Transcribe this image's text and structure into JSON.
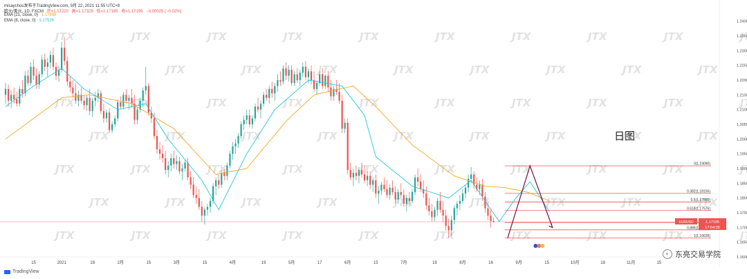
{
  "header": {
    "line1_prefix": "misaychou发布于TradingView.com, 9月 22, 2021 11:55 UTC+8",
    "symbol": "欧元/美元, 1D, FXCM",
    "open": "开=1.17220",
    "high": "高=1.17329",
    "low": "低=1.17165",
    "close": "收=1.17195",
    "change": "−0.00025 (−0.02%)",
    "ema21": "EMA (21, close, 0)",
    "ema21_val": "1.17898",
    "ema8": "EMA (8, close, 0)",
    "ema8_val": "1.17526"
  },
  "day_label": "日图",
  "watermark_text": "JTX",
  "footer": {
    "tv_label": "TradingView",
    "source_label": "东亮交易学院"
  },
  "colors": {
    "up": "#26a69a",
    "down": "#ef5350",
    "ema21": "#f5a623",
    "ema8": "#26c6da",
    "fib": "#ef5350",
    "pattern": "#7b1e4a"
  },
  "chart_data": {
    "type": "candlestick",
    "title": "",
    "y_ticks": [
      "1.24000",
      "1.23500",
      "1.23000",
      "1.22500",
      "1.22000",
      "1.21500",
      "1.21000",
      "1.20500",
      "1.20000",
      "1.19500",
      "1.19000",
      "1.18500",
      "1.18000",
      "1.17500",
      "1.17000",
      "1.16500",
      "1.16000"
    ],
    "ylim": [
      1.16,
      1.2425
    ],
    "x_ticks": [
      "15",
      "2021",
      "18",
      "2月",
      "15",
      "3月",
      "15",
      "4月",
      "19",
      "5月",
      "17",
      "6月",
      "15",
      "7月",
      "19",
      "8月",
      "16",
      "9月",
      "15",
      "10月",
      "18",
      "11月",
      "15"
    ],
    "x_tick_index": [
      10,
      20,
      31,
      41,
      51,
      61,
      71,
      81,
      92,
      102,
      112,
      122,
      132,
      142,
      153,
      163,
      173,
      183,
      193,
      203,
      213,
      223,
      233
    ],
    "candles": [
      [
        1.215,
        1.219,
        1.212,
        1.217
      ],
      [
        1.217,
        1.2185,
        1.211,
        1.213
      ],
      [
        1.213,
        1.2165,
        1.2105,
        1.215
      ],
      [
        1.215,
        1.2175,
        1.212,
        1.2135
      ],
      [
        1.2135,
        1.216,
        1.211,
        1.212
      ],
      [
        1.212,
        1.218,
        1.211,
        1.217
      ],
      [
        1.217,
        1.22,
        1.214,
        1.2155
      ],
      [
        1.2155,
        1.223,
        1.2145,
        1.2215
      ],
      [
        1.2215,
        1.2235,
        1.218,
        1.219
      ],
      [
        1.219,
        1.226,
        1.218,
        1.2245
      ],
      [
        1.2245,
        1.227,
        1.22,
        1.2215
      ],
      [
        1.2215,
        1.224,
        1.217,
        1.2185
      ],
      [
        1.2185,
        1.223,
        1.217,
        1.222
      ],
      [
        1.222,
        1.2285,
        1.221,
        1.227
      ],
      [
        1.227,
        1.229,
        1.223,
        1.2245
      ],
      [
        1.2245,
        1.2275,
        1.221,
        1.226
      ],
      [
        1.226,
        1.23,
        1.224,
        1.2285
      ],
      [
        1.2285,
        1.231,
        1.2235,
        1.2245
      ],
      [
        1.2245,
        1.226,
        1.22,
        1.2215
      ],
      [
        1.2215,
        1.225,
        1.2195,
        1.2235
      ],
      [
        1.2235,
        1.233,
        1.2225,
        1.231
      ],
      [
        1.231,
        1.2345,
        1.225,
        1.2265
      ],
      [
        1.2265,
        1.228,
        1.218,
        1.2195
      ],
      [
        1.2195,
        1.2215,
        1.216,
        1.2175
      ],
      [
        1.2175,
        1.22,
        1.214,
        1.2155
      ],
      [
        1.2155,
        1.219,
        1.212,
        1.213
      ],
      [
        1.213,
        1.2165,
        1.211,
        1.215
      ],
      [
        1.215,
        1.2175,
        1.212,
        1.213
      ],
      [
        1.213,
        1.215,
        1.21,
        1.2115
      ],
      [
        1.2115,
        1.215,
        1.2095,
        1.214
      ],
      [
        1.214,
        1.217,
        1.208,
        1.2095
      ],
      [
        1.2095,
        1.214,
        1.2075,
        1.213
      ],
      [
        1.213,
        1.216,
        1.211,
        1.214
      ],
      [
        1.214,
        1.217,
        1.2125,
        1.2155
      ],
      [
        1.2155,
        1.2165,
        1.2085,
        1.2095
      ],
      [
        1.2095,
        1.212,
        1.2055,
        1.207
      ],
      [
        1.207,
        1.21,
        1.2055,
        1.209
      ],
      [
        1.209,
        1.2105,
        1.202,
        1.203
      ],
      [
        1.203,
        1.206,
        1.202,
        1.205
      ],
      [
        1.205,
        1.208,
        1.204,
        1.207
      ],
      [
        1.207,
        1.2135,
        1.206,
        1.2125
      ],
      [
        1.2125,
        1.2145,
        1.21,
        1.211
      ],
      [
        1.211,
        1.216,
        1.21,
        1.215
      ],
      [
        1.215,
        1.217,
        1.212,
        1.213
      ],
      [
        1.213,
        1.215,
        1.21,
        1.214
      ],
      [
        1.214,
        1.217,
        1.211,
        1.212
      ],
      [
        1.212,
        1.215,
        1.205,
        1.2065
      ],
      [
        1.2065,
        1.211,
        1.205,
        1.21
      ],
      [
        1.21,
        1.214,
        1.209,
        1.213
      ],
      [
        1.213,
        1.2175,
        1.211,
        1.2165
      ],
      [
        1.2165,
        1.2245,
        1.215,
        1.218
      ],
      [
        1.218,
        1.219,
        1.208,
        1.209
      ],
      [
        1.209,
        1.211,
        1.2055,
        1.207
      ],
      [
        1.207,
        1.209,
        1.2,
        1.201
      ],
      [
        1.201,
        1.203,
        1.195,
        1.1965
      ],
      [
        1.1965,
        1.199,
        1.193,
        1.195
      ],
      [
        1.195,
        1.198,
        1.192,
        1.1935
      ],
      [
        1.1935,
        1.196,
        1.188,
        1.1895
      ],
      [
        1.1895,
        1.1925,
        1.187,
        1.191
      ],
      [
        1.191,
        1.195,
        1.189,
        1.1935
      ],
      [
        1.1935,
        1.196,
        1.19,
        1.1915
      ],
      [
        1.1915,
        1.1945,
        1.1895,
        1.1925
      ],
      [
        1.1925,
        1.194,
        1.188,
        1.189
      ],
      [
        1.189,
        1.1915,
        1.186,
        1.19
      ],
      [
        1.19,
        1.193,
        1.189,
        1.192
      ],
      [
        1.192,
        1.1935,
        1.186,
        1.187
      ],
      [
        1.187,
        1.189,
        1.183,
        1.1845
      ],
      [
        1.1845,
        1.187,
        1.18,
        1.181
      ],
      [
        1.181,
        1.184,
        1.178,
        1.18
      ],
      [
        1.18,
        1.183,
        1.176,
        1.177
      ],
      [
        1.177,
        1.179,
        1.172,
        1.174
      ],
      [
        1.174,
        1.177,
        1.171,
        1.176
      ],
      [
        1.176,
        1.178,
        1.174,
        1.177
      ],
      [
        1.177,
        1.18,
        1.175,
        1.179
      ],
      [
        1.179,
        1.185,
        1.178,
        1.184
      ],
      [
        1.184,
        1.187,
        1.181,
        1.186
      ],
      [
        1.186,
        1.188,
        1.183,
        1.1845
      ],
      [
        1.1845,
        1.1895,
        1.1835,
        1.1885
      ],
      [
        1.1885,
        1.19,
        1.186,
        1.1875
      ],
      [
        1.1875,
        1.192,
        1.186,
        1.191
      ],
      [
        1.191,
        1.196,
        1.19,
        1.195
      ],
      [
        1.195,
        1.199,
        1.193,
        1.1975
      ],
      [
        1.1975,
        1.2,
        1.195,
        1.1985
      ],
      [
        1.1985,
        1.202,
        1.197,
        1.201
      ],
      [
        1.201,
        1.206,
        1.2,
        1.205
      ],
      [
        1.205,
        1.208,
        1.203,
        1.2065
      ],
      [
        1.2065,
        1.21,
        1.205,
        1.208
      ],
      [
        1.208,
        1.21,
        1.204,
        1.205
      ],
      [
        1.205,
        1.208,
        1.2035,
        1.207
      ],
      [
        1.207,
        1.212,
        1.206,
        1.211
      ],
      [
        1.211,
        1.214,
        1.209,
        1.21
      ],
      [
        1.21,
        1.213,
        1.207,
        1.212
      ],
      [
        1.212,
        1.216,
        1.211,
        1.215
      ],
      [
        1.215,
        1.217,
        1.213,
        1.214
      ],
      [
        1.214,
        1.218,
        1.212,
        1.217
      ],
      [
        1.217,
        1.2195,
        1.214,
        1.2155
      ],
      [
        1.2155,
        1.219,
        1.213,
        1.218
      ],
      [
        1.218,
        1.222,
        1.216,
        1.22
      ],
      [
        1.22,
        1.223,
        1.218,
        1.2195
      ],
      [
        1.2195,
        1.225,
        1.2185,
        1.224
      ],
      [
        1.224,
        1.226,
        1.22,
        1.2215
      ],
      [
        1.2215,
        1.225,
        1.2195,
        1.2235
      ],
      [
        1.2235,
        1.225,
        1.218,
        1.219
      ],
      [
        1.219,
        1.223,
        1.218,
        1.222
      ],
      [
        1.222,
        1.224,
        1.219,
        1.22
      ],
      [
        1.22,
        1.2235,
        1.218,
        1.2225
      ],
      [
        1.2225,
        1.226,
        1.221,
        1.2245
      ],
      [
        1.2245,
        1.2265,
        1.22,
        1.221
      ],
      [
        1.221,
        1.224,
        1.219,
        1.223
      ],
      [
        1.223,
        1.225,
        1.2185,
        1.22
      ],
      [
        1.22,
        1.223,
        1.216,
        1.217
      ],
      [
        1.217,
        1.22,
        1.215,
        1.219
      ],
      [
        1.219,
        1.223,
        1.218,
        1.222
      ],
      [
        1.222,
        1.224,
        1.217,
        1.218
      ],
      [
        1.218,
        1.222,
        1.217,
        1.2215
      ],
      [
        1.2215,
        1.223,
        1.216,
        1.2175
      ],
      [
        1.2175,
        1.22,
        1.213,
        1.2145
      ],
      [
        1.2145,
        1.218,
        1.213,
        1.217
      ],
      [
        1.217,
        1.22,
        1.215,
        1.216
      ],
      [
        1.216,
        1.219,
        1.212,
        1.213
      ],
      [
        1.213,
        1.215,
        1.202,
        1.2035
      ],
      [
        1.2035,
        1.207,
        1.202,
        1.2055
      ],
      [
        1.2055,
        1.207,
        1.188,
        1.1895
      ],
      [
        1.1895,
        1.192,
        1.186,
        1.187
      ],
      [
        1.187,
        1.19,
        1.184,
        1.1885
      ],
      [
        1.1885,
        1.191,
        1.186,
        1.1875
      ],
      [
        1.1875,
        1.1905,
        1.185,
        1.1895
      ],
      [
        1.1895,
        1.192,
        1.187,
        1.188
      ],
      [
        1.188,
        1.191,
        1.185,
        1.186
      ],
      [
        1.186,
        1.189,
        1.184,
        1.1875
      ],
      [
        1.1875,
        1.189,
        1.183,
        1.1845
      ],
      [
        1.1845,
        1.187,
        1.182,
        1.186
      ],
      [
        1.186,
        1.188,
        1.18,
        1.1815
      ],
      [
        1.1815,
        1.184,
        1.178,
        1.1825
      ],
      [
        1.1825,
        1.1855,
        1.181,
        1.1845
      ],
      [
        1.1845,
        1.187,
        1.182,
        1.183
      ],
      [
        1.183,
        1.186,
        1.18,
        1.181
      ],
      [
        1.181,
        1.1845,
        1.1795,
        1.1835
      ],
      [
        1.1835,
        1.186,
        1.181,
        1.182
      ],
      [
        1.182,
        1.184,
        1.178,
        1.1795
      ],
      [
        1.1795,
        1.183,
        1.178,
        1.182
      ],
      [
        1.182,
        1.185,
        1.18,
        1.181
      ],
      [
        1.181,
        1.183,
        1.177,
        1.178
      ],
      [
        1.178,
        1.181,
        1.1755,
        1.18
      ],
      [
        1.18,
        1.182,
        1.177,
        1.179
      ],
      [
        1.179,
        1.183,
        1.178,
        1.182
      ],
      [
        1.182,
        1.188,
        1.181,
        1.187
      ],
      [
        1.187,
        1.19,
        1.184,
        1.1855
      ],
      [
        1.1855,
        1.188,
        1.182,
        1.183
      ],
      [
        1.183,
        1.186,
        1.18,
        1.1815
      ],
      [
        1.1815,
        1.184,
        1.176,
        1.1775
      ],
      [
        1.1775,
        1.18,
        1.174,
        1.1755
      ],
      [
        1.1755,
        1.178,
        1.172,
        1.1735
      ],
      [
        1.1735,
        1.177,
        1.172,
        1.176
      ],
      [
        1.176,
        1.18,
        1.174,
        1.179
      ],
      [
        1.179,
        1.182,
        1.175,
        1.176
      ],
      [
        1.176,
        1.179,
        1.172,
        1.174
      ],
      [
        1.174,
        1.176,
        1.169,
        1.1705
      ],
      [
        1.1705,
        1.173,
        1.1665,
        1.169
      ],
      [
        1.169,
        1.174,
        1.167,
        1.1725
      ],
      [
        1.1725,
        1.1775,
        1.171,
        1.1765
      ],
      [
        1.1765,
        1.179,
        1.174,
        1.178
      ],
      [
        1.178,
        1.181,
        1.176,
        1.179
      ],
      [
        1.179,
        1.183,
        1.178,
        1.1815
      ],
      [
        1.1815,
        1.1845,
        1.18,
        1.1835
      ],
      [
        1.1835,
        1.188,
        1.182,
        1.1865
      ],
      [
        1.1865,
        1.1905,
        1.185,
        1.188
      ],
      [
        1.188,
        1.189,
        1.183,
        1.1845
      ],
      [
        1.1845,
        1.187,
        1.182,
        1.183
      ],
      [
        1.183,
        1.186,
        1.181,
        1.1845
      ],
      [
        1.1845,
        1.1865,
        1.179,
        1.1805
      ],
      [
        1.1805,
        1.182,
        1.175,
        1.1765
      ],
      [
        1.1765,
        1.179,
        1.1725,
        1.174
      ],
      [
        1.174,
        1.176,
        1.17,
        1.1722
      ],
      [
        1.1722,
        1.1733,
        1.1716,
        1.17195
      ]
    ],
    "ema21": [
      [
        0,
        1.2
      ],
      [
        20,
        1.214
      ],
      [
        30,
        1.215
      ],
      [
        45,
        1.212
      ],
      [
        60,
        1.2035
      ],
      [
        75,
        1.188
      ],
      [
        86,
        1.19
      ],
      [
        100,
        1.206
      ],
      [
        110,
        1.215
      ],
      [
        124,
        1.218
      ],
      [
        132,
        1.211
      ],
      [
        145,
        1.198
      ],
      [
        160,
        1.1875
      ],
      [
        171,
        1.184
      ],
      [
        178,
        1.1835
      ],
      [
        186,
        1.182
      ],
      [
        194,
        1.17898
      ]
    ],
    "ema8": [
      [
        0,
        1.211
      ],
      [
        10,
        1.218
      ],
      [
        20,
        1.224
      ],
      [
        28,
        1.217
      ],
      [
        40,
        1.21
      ],
      [
        50,
        1.212
      ],
      [
        58,
        1.2
      ],
      [
        70,
        1.186
      ],
      [
        76,
        1.176
      ],
      [
        86,
        1.195
      ],
      [
        96,
        1.21
      ],
      [
        108,
        1.22
      ],
      [
        120,
        1.218
      ],
      [
        128,
        1.208
      ],
      [
        132,
        1.194
      ],
      [
        145,
        1.184
      ],
      [
        158,
        1.18
      ],
      [
        166,
        1.186
      ],
      [
        171,
        1.179
      ],
      [
        176,
        1.172
      ],
      [
        182,
        1.18
      ],
      [
        187,
        1.1855
      ],
      [
        194,
        1.17526
      ]
    ],
    "fib_levels": [
      {
        "label": "0(1.19090)",
        "value": 1.1909
      },
      {
        "label": "0.382(1.18156)",
        "value": 1.18156
      },
      {
        "label": "0.5(1.17865)",
        "value": 1.17865
      },
      {
        "label": "0.618(1.17576)",
        "value": 1.17576
      },
      {
        "label": "0.786",
        "value": 1.17165
      },
      {
        "label": "0.886(1.16918)",
        "value": 1.16918
      },
      {
        "label": "1(1.16639)",
        "value": 1.16639
      }
    ],
    "price_tag": {
      "symbol": "EURUSD",
      "price": "1.17195",
      "time": "17:04:09"
    },
    "pattern_points": [
      [
        179,
        1.1664
      ],
      [
        187,
        1.1909
      ],
      [
        195,
        1.17
      ]
    ]
  }
}
